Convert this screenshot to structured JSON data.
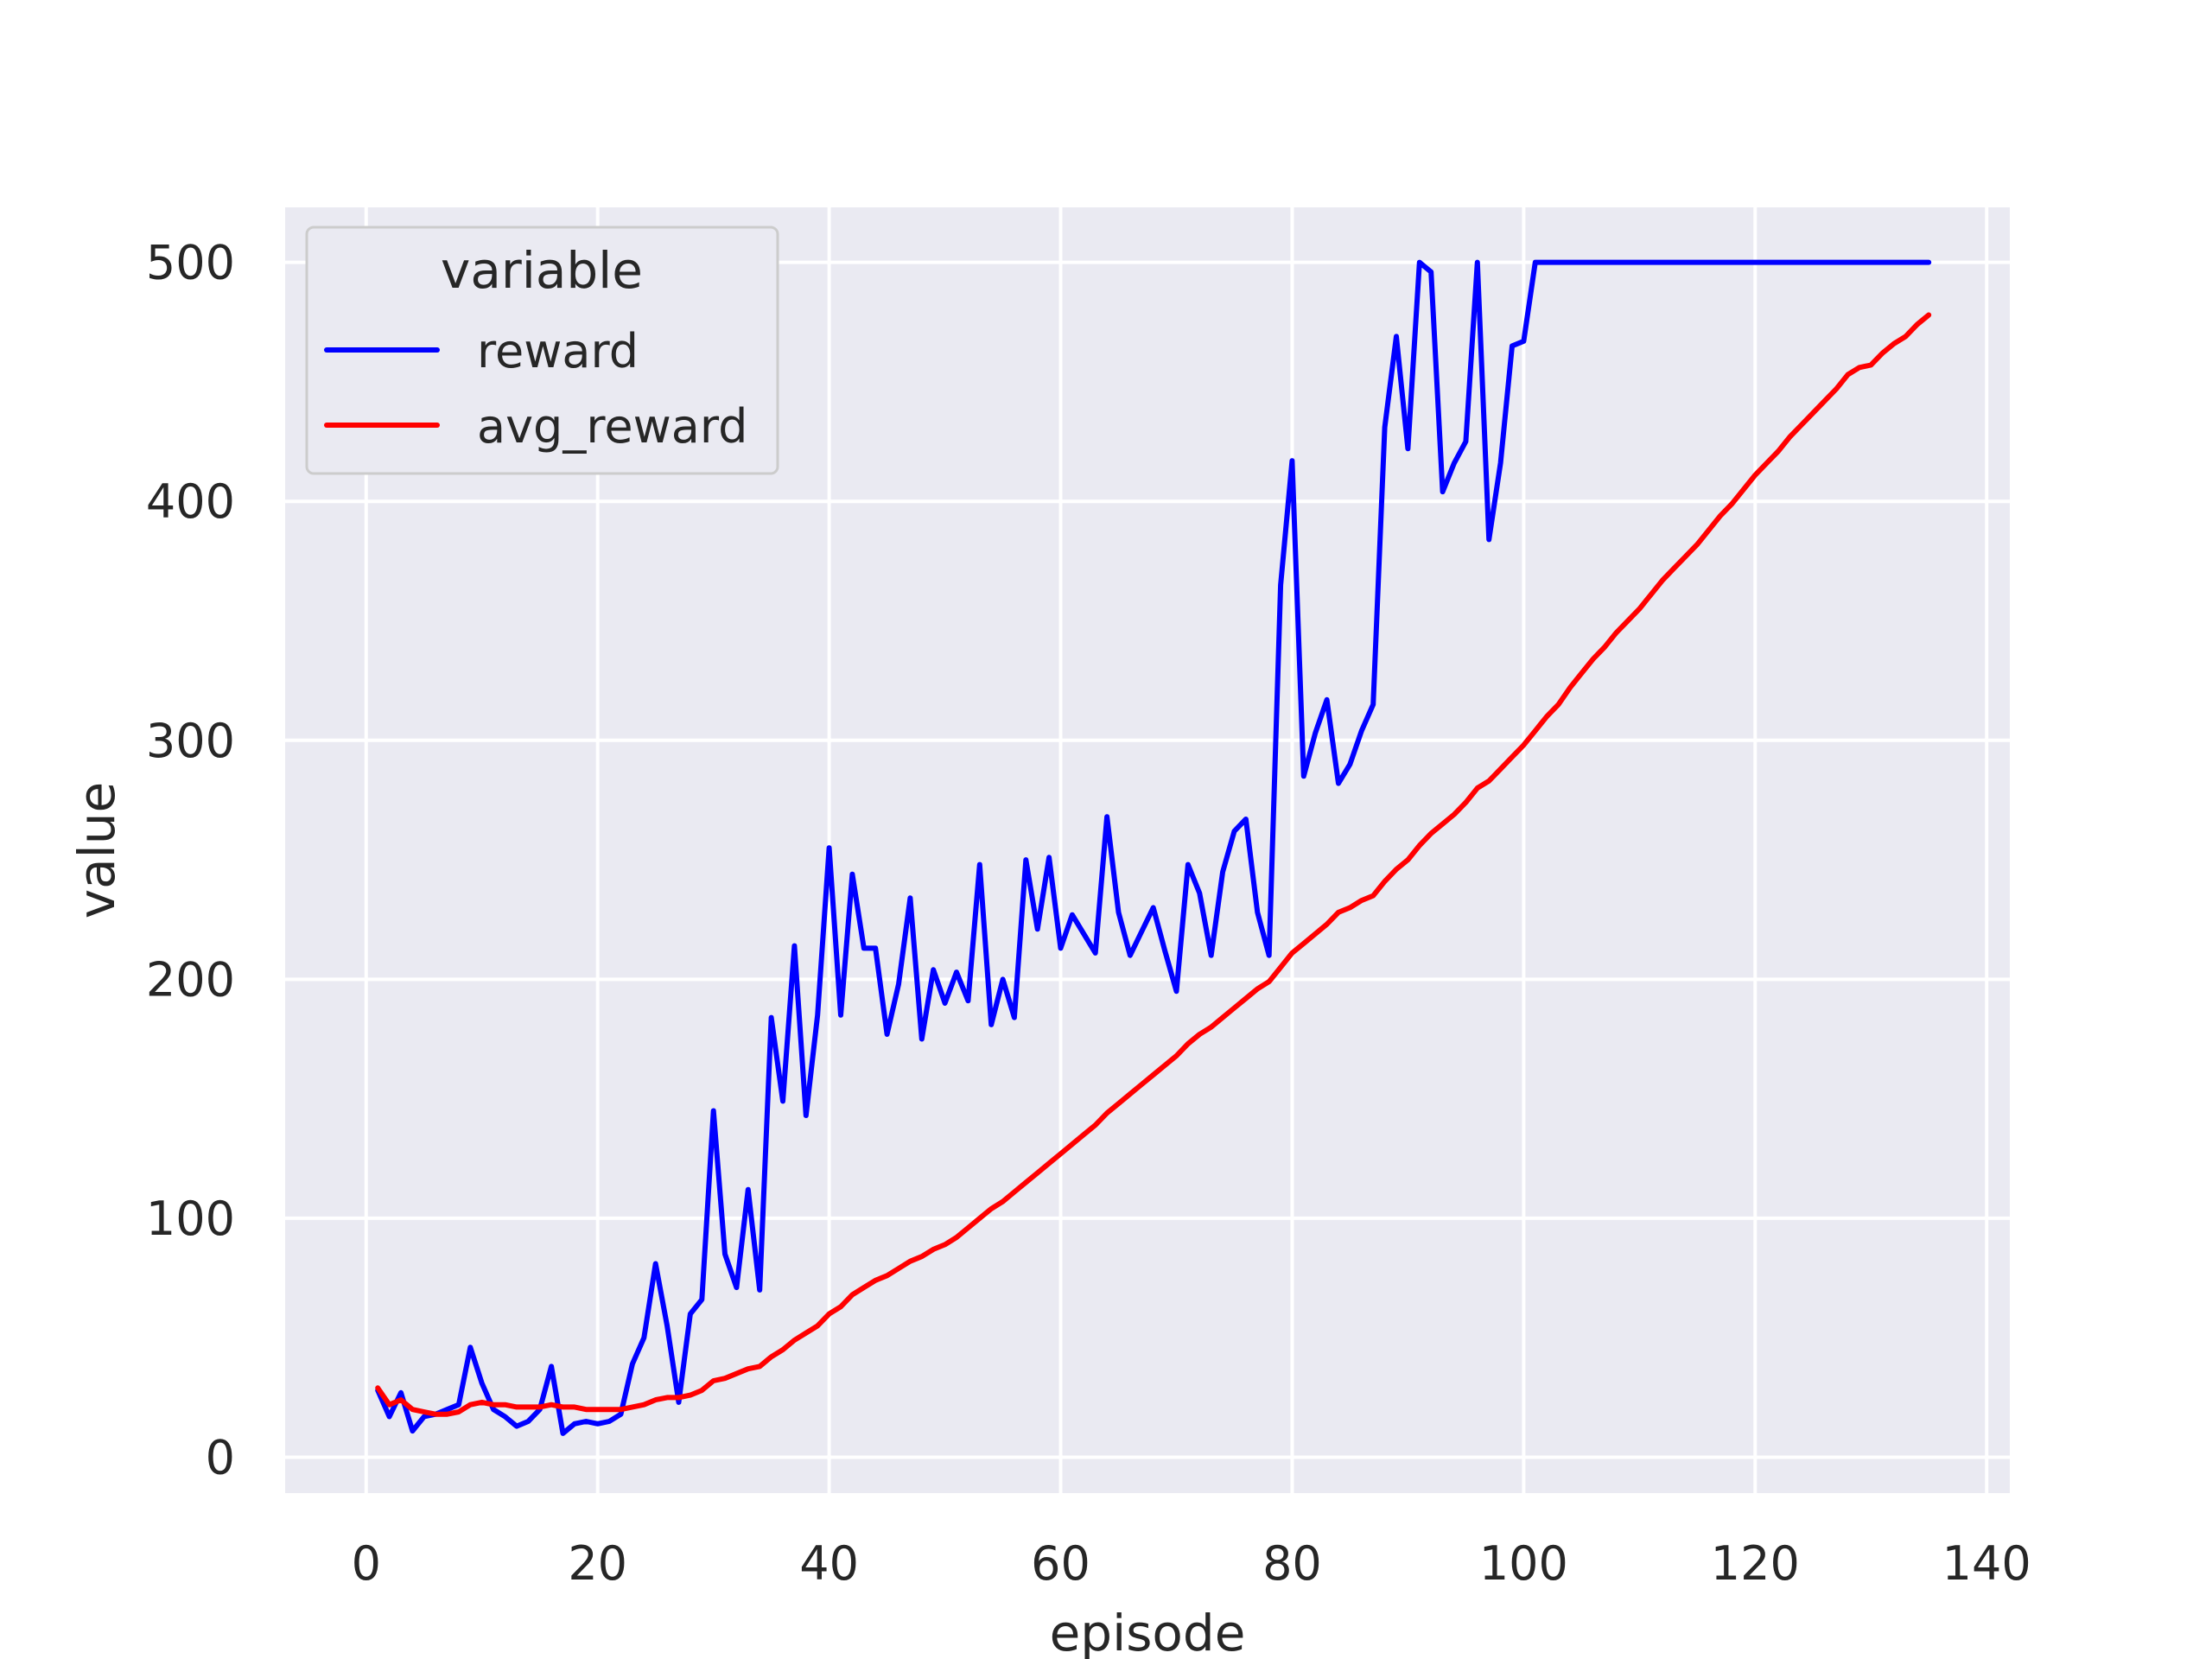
{
  "chart_data": {
    "type": "line",
    "title": "",
    "xlabel": "episode",
    "ylabel": "value",
    "xlim": [
      -7,
      142
    ],
    "ylim": [
      -15,
      523
    ],
    "xticks": [
      0,
      20,
      40,
      60,
      80,
      100,
      120,
      140
    ],
    "yticks": [
      0,
      100,
      200,
      300,
      400,
      500
    ],
    "grid": true,
    "legend": {
      "title": "variable",
      "placement": "top-left"
    },
    "x": [
      1,
      2,
      3,
      4,
      5,
      6,
      7,
      8,
      9,
      10,
      11,
      12,
      13,
      14,
      15,
      16,
      17,
      18,
      19,
      20,
      21,
      22,
      23,
      24,
      25,
      26,
      27,
      28,
      29,
      30,
      31,
      32,
      33,
      34,
      35,
      36,
      37,
      38,
      39,
      40,
      41,
      42,
      43,
      44,
      45,
      46,
      47,
      48,
      49,
      50,
      51,
      52,
      53,
      54,
      55,
      56,
      57,
      58,
      59,
      60,
      61,
      62,
      63,
      64,
      65,
      66,
      67,
      68,
      69,
      70,
      71,
      72,
      73,
      74,
      75,
      76,
      77,
      78,
      79,
      80,
      81,
      82,
      83,
      84,
      85,
      86,
      87,
      88,
      89,
      90,
      91,
      92,
      93,
      94,
      95,
      96,
      97,
      98,
      99,
      100,
      101,
      102,
      103,
      104,
      105,
      106,
      107,
      108,
      109,
      110,
      111,
      112,
      113,
      114,
      115,
      116,
      117,
      118,
      119,
      120,
      121,
      122,
      123,
      124,
      125,
      126,
      127,
      128,
      129,
      130,
      131,
      132,
      133,
      134,
      135
    ],
    "series": [
      {
        "name": "reward",
        "color": "#0000ff",
        "values": [
          28,
          17,
          27,
          11,
          17,
          18,
          20,
          22,
          46,
          31,
          20,
          17,
          13,
          15,
          20,
          38,
          10,
          14,
          15,
          14,
          15,
          18,
          39,
          50,
          81,
          55,
          23,
          60,
          66,
          145,
          85,
          71,
          112,
          70,
          184,
          149,
          214,
          143,
          185,
          255,
          185,
          244,
          213,
          213,
          177,
          198,
          234,
          175,
          204,
          190,
          203,
          191,
          248,
          181,
          200,
          184,
          250,
          221,
          251,
          213,
          227,
          219,
          211,
          268,
          228,
          210,
          220,
          230,
          212,
          195,
          248,
          236,
          210,
          245,
          262,
          267,
          228,
          210,
          365,
          417,
          285,
          303,
          317,
          282,
          290,
          304,
          315,
          431,
          469,
          422,
          500,
          496,
          404,
          416,
          425,
          500,
          384,
          416,
          465,
          467,
          500,
          500,
          500,
          500,
          500,
          500,
          500,
          500,
          500,
          500,
          500,
          500,
          500,
          500,
          500,
          500,
          500,
          500,
          500,
          500,
          500,
          500,
          500,
          500,
          500,
          500,
          500,
          500,
          500,
          500,
          500,
          500,
          500,
          500,
          500
        ]
      },
      {
        "name": "avg_reward",
        "color": "#ff0000",
        "values": [
          29,
          22,
          24,
          20,
          19,
          18,
          18,
          19,
          22,
          23,
          22,
          22,
          21,
          21,
          21,
          22,
          21,
          21,
          20,
          20,
          20,
          20,
          21,
          22,
          24,
          25,
          25,
          26,
          28,
          32,
          33,
          35,
          37,
          38,
          42,
          45,
          49,
          52,
          55,
          60,
          63,
          68,
          71,
          74,
          76,
          79,
          82,
          84,
          87,
          89,
          92,
          96,
          100,
          104,
          107,
          111,
          115,
          119,
          123,
          127,
          131,
          135,
          139,
          144,
          148,
          152,
          156,
          160,
          164,
          168,
          173,
          177,
          180,
          184,
          188,
          192,
          196,
          199,
          205,
          211,
          215,
          219,
          223,
          228,
          230,
          233,
          235,
          241,
          246,
          250,
          256,
          261,
          265,
          269,
          274,
          280,
          283,
          288,
          293,
          298,
          304,
          310,
          315,
          322,
          328,
          334,
          339,
          345,
          350,
          355,
          361,
          367,
          372,
          377,
          382,
          388,
          394,
          399,
          405,
          411,
          416,
          421,
          427,
          432,
          437,
          442,
          447,
          453,
          456,
          457,
          462,
          466,
          469,
          474,
          478
        ]
      }
    ]
  }
}
